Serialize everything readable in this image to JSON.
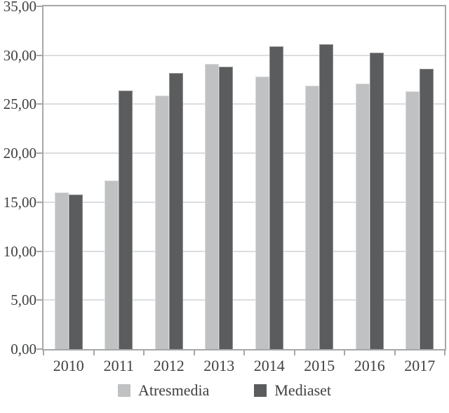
{
  "chart_data": {
    "type": "bar",
    "title": "",
    "categories": [
      "2010",
      "2011",
      "2012",
      "2013",
      "2014",
      "2015",
      "2016",
      "2017"
    ],
    "series": [
      {
        "name": "Atresmedia",
        "values": [
          16.0,
          17.2,
          25.9,
          29.1,
          27.8,
          26.9,
          27.1,
          26.3
        ],
        "color": "#bfc1c3",
        "edge_color": "#dadbdc"
      },
      {
        "name": "Mediaset",
        "values": [
          15.8,
          26.4,
          28.2,
          28.8,
          30.9,
          31.1,
          30.3,
          28.6
        ],
        "color": "#5a5c5e",
        "edge_color": "#8e9092"
      }
    ],
    "xlabel": "",
    "ylabel": "",
    "ylim": [
      0,
      35
    ],
    "ytick_interval": 5,
    "yticks": [
      {
        "value": 35,
        "label": "35,00"
      },
      {
        "value": 30,
        "label": "30,00"
      },
      {
        "value": 25,
        "label": "25,00"
      },
      {
        "value": 20,
        "label": "20,00"
      },
      {
        "value": 15,
        "label": "15,00"
      },
      {
        "value": 10,
        "label": "10,00"
      },
      {
        "value": 5,
        "label": "5,00"
      },
      {
        "value": 0,
        "label": "0,00"
      }
    ],
    "decimal_separator": ",",
    "grid": true,
    "legend_position": "bottom"
  },
  "colors": {
    "background": "#ffffff",
    "plot_border": "#a5a7a9",
    "gridline": "#dcdde0",
    "tick": "#a5a7a9",
    "text": "#3e4041"
  }
}
